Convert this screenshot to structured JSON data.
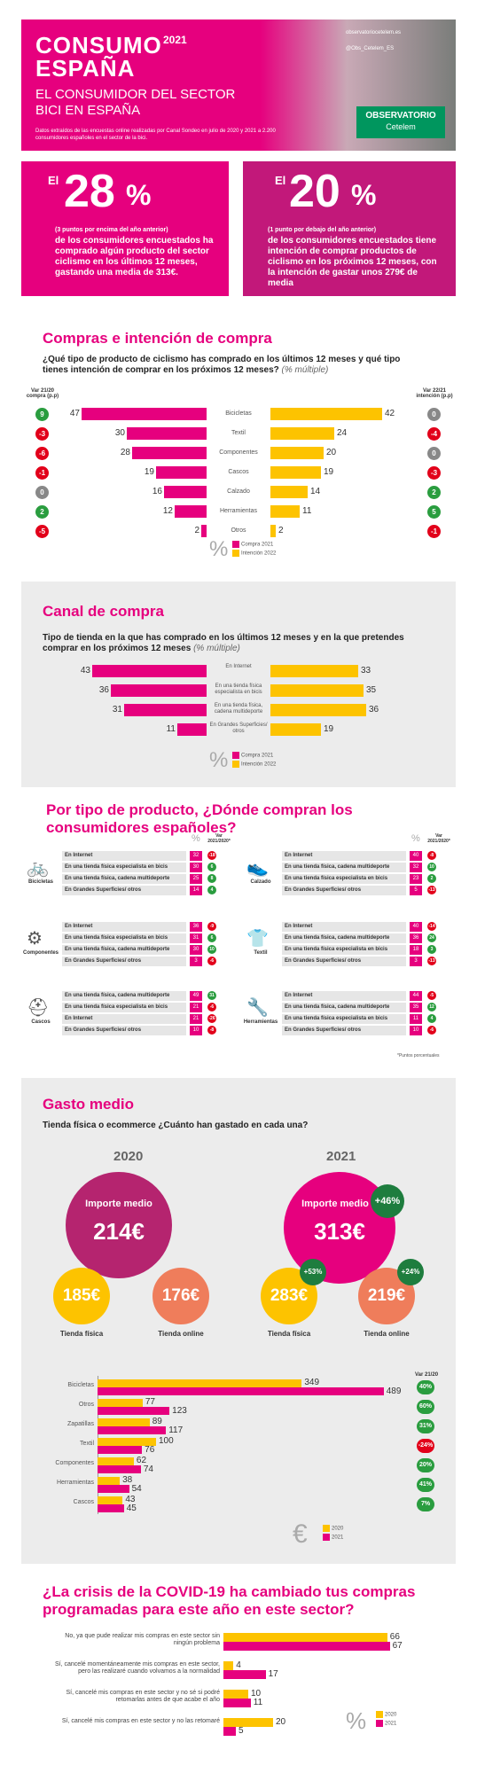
{
  "header": {
    "title1": "CONSUMO",
    "year": "2021",
    "title2": "ESPAÑA",
    "sub1": "EL CONSUMIDOR DEL SECTOR",
    "sub2": "BICI EN ESPAÑA",
    "note": "Datos extraídos de las encuestas online realizadas por Canal Sondeo en julio de 2020 y 2021 a 2.200 consumidores españoles en el sector de la bici.",
    "email": "observatoriocetelem.es",
    "twitter": "@Obs_Cetelem_ES",
    "logo1": "OBSERVATORIO",
    "logo2": "Cetelem",
    "colors": {
      "accent": "#e6007e",
      "yellow": "#fdc300"
    }
  },
  "kpi": [
    {
      "pre": "El",
      "value": "28",
      "unit": "%",
      "sub": "(3 puntos por encima del año anterior)",
      "text": "de los consumidores encuestados ha comprado algún producto del sector ciclismo en los últimos 12 meses,  gastando una media de 313€."
    },
    {
      "pre": "El",
      "value": "20",
      "unit": "%",
      "sub": "(1 punto por debajo del año anterior)",
      "text": "de los consumidores encuestados tiene intención de comprar productos de ciclismo en los próximos 12 meses, con la intención de gastar unos 279€ de media"
    }
  ],
  "compras": {
    "title": "Compras e intención de compra",
    "question": "¿Qué tipo de producto de ciclismo has comprado en los últimos 12 meses y qué tipo tienes intención de comprar en los próximos 12 meses?",
    "multi": "(% múltiple)",
    "var_left": "Var 21/20 compra (p.p)",
    "var_right": "Var 22/21 intención (p.p)",
    "pct": "%",
    "legend": [
      "Compra 2021",
      "Intención  2022"
    ],
    "rows": [
      {
        "label": "Bicicletas",
        "compra": 47,
        "intencion": 42,
        "varL": "9",
        "varR": "0",
        "cL": "g",
        "cR": "gr"
      },
      {
        "label": "Textil",
        "compra": 30,
        "intencion": 24,
        "varL": "-3",
        "varR": "-4",
        "cL": "r",
        "cR": "r"
      },
      {
        "label": "Componentes",
        "compra": 28,
        "intencion": 20,
        "varL": "-6",
        "varR": "0",
        "cL": "r",
        "cR": "gr"
      },
      {
        "label": "Cascos",
        "compra": 19,
        "intencion": 19,
        "varL": "-1",
        "varR": "-3",
        "cL": "r",
        "cR": "r"
      },
      {
        "label": "Calzado",
        "compra": 16,
        "intencion": 14,
        "varL": "0",
        "varR": "2",
        "cL": "gr",
        "cR": "g"
      },
      {
        "label": "Herramientas",
        "compra": 12,
        "intencion": 11,
        "varL": "2",
        "varR": "5",
        "cL": "g",
        "cR": "g"
      },
      {
        "label": "Otros",
        "compra": 2,
        "intencion": 2,
        "varL": "-5",
        "varR": "-1",
        "cL": "r",
        "cR": "r"
      }
    ]
  },
  "canal": {
    "title": "Canal de compra",
    "question": "Tipo de tienda en la que has comprado en los últimos 12 meses y en la que pretendes comprar en los próximos 12 meses",
    "multi": "(% múltiple)",
    "pct": "%",
    "legend": [
      "Compra 2021",
      "Intención  2022"
    ],
    "rows": [
      {
        "label": "En Internet",
        "compra": 43,
        "intencion": 33
      },
      {
        "label": "En una tienda física especialista en bicis",
        "compra": 36,
        "intencion": 35
      },
      {
        "label": "En una tienda física, cadena multideporte",
        "compra": 31,
        "intencion": 36
      },
      {
        "label": "En Grandes Superficies/ otros",
        "compra": 11,
        "intencion": 19
      }
    ]
  },
  "producto": {
    "title": "Por tipo de producto, ¿Dónde compran los consumidores españoles?",
    "pct": "%",
    "var": "Var 2021/2020*",
    "footnote": "*Puntos porcentuales",
    "blocks": [
      {
        "name": "Bicicletas",
        "icon": "bicycle-icon",
        "rows": [
          [
            "En Internet",
            "32",
            "-18",
            "r"
          ],
          [
            "En una tienda física especialista en bicis",
            "30",
            "6",
            "g"
          ],
          [
            "En una tienda física, cadena multideporte",
            "25",
            "8",
            "g"
          ],
          [
            "En Grandes Superficies/ otros",
            "14",
            "4",
            "g"
          ]
        ]
      },
      {
        "name": "Calzado",
        "icon": "shoe-icon",
        "rows": [
          [
            "En Internet",
            "40",
            "-8",
            "r"
          ],
          [
            "En una tienda física, cadena multideporte",
            "32",
            "10",
            "g"
          ],
          [
            "En una tienda física especialista en bicis",
            "23",
            "2",
            "g"
          ],
          [
            "En Grandes Superficies/ otros",
            "5",
            "-13",
            "r"
          ]
        ]
      },
      {
        "name": "Componentes",
        "icon": "gear-icon",
        "rows": [
          [
            "En Internet",
            "36",
            "-9",
            "r"
          ],
          [
            "En una tienda física especialista en bicis",
            "31",
            "6",
            "g"
          ],
          [
            "En una tienda física, cadena multideporte",
            "30",
            "10",
            "g"
          ],
          [
            "En Grandes Superficies/ otros",
            "3",
            "-6",
            "r"
          ]
        ]
      },
      {
        "name": "Textil",
        "icon": "shirt-icon",
        "rows": [
          [
            "En Internet",
            "40",
            "-14",
            "r"
          ],
          [
            "En una tienda física, cadena multideporte",
            "36",
            "24",
            "g"
          ],
          [
            "En una tienda física especialista en bicis",
            "18",
            "3",
            "g"
          ],
          [
            "En Grandes Superficies/ otros",
            "3",
            "-13",
            "r"
          ]
        ]
      },
      {
        "name": "Cascos",
        "icon": "helmet-icon",
        "rows": [
          [
            "En una tienda física, cadena multideporte",
            "49",
            "31",
            "g"
          ],
          [
            "En una tienda física especialista en bicis",
            "21",
            "-6",
            "r"
          ],
          [
            "En Internet",
            "21",
            "-26",
            "r"
          ],
          [
            "En Grandes Superficies/ otros",
            "10",
            "-8",
            "r"
          ]
        ]
      },
      {
        "name": "Herramientas",
        "icon": "wrench-icon",
        "rows": [
          [
            "En Internet",
            "44",
            "-5",
            "r"
          ],
          [
            "En una tienda física, cadena multideporte",
            "35",
            "12",
            "g"
          ],
          [
            "En una tienda física especialista en bicis",
            "11",
            "4",
            "g"
          ],
          [
            "En Grandes Superficies/ otros",
            "10",
            "-6",
            "r"
          ]
        ]
      }
    ]
  },
  "gasto": {
    "title": "Gasto medio",
    "question": "Tienda física o ecommerce ¿Cuánto han gastado en cada una?",
    "y2020": "2020",
    "y2021": "2021",
    "importe": "Importe medio",
    "i2020": "214€",
    "i2021": "313€",
    "inc": "+46%",
    "f2020": "185€",
    "o2020": "176€",
    "f2021": "283€",
    "o2021": "219€",
    "incF": "+53%",
    "incO": "+24%",
    "fisica": "Tienda física",
    "online": "Tienda online",
    "var": "Var 21/20",
    "euro": "€",
    "legend": [
      "2020",
      "2021"
    ],
    "rows": [
      {
        "label": "Bicicletas",
        "v2020": 349,
        "v2021": 489,
        "var": "40%",
        "c": "g"
      },
      {
        "label": "Otros",
        "v2020": 77,
        "v2021": 123,
        "var": "60%",
        "c": "g"
      },
      {
        "label": "Zapatillas",
        "v2020": 89,
        "v2021": 117,
        "var": "31%",
        "c": "g"
      },
      {
        "label": "Textil",
        "v2020": 100,
        "v2021": 76,
        "var": "-24%",
        "c": "r"
      },
      {
        "label": "Componentes",
        "v2020": 62,
        "v2021": 74,
        "var": "20%",
        "c": "g"
      },
      {
        "label": "Herramientas",
        "v2020": 38,
        "v2021": 54,
        "var": "41%",
        "c": "g"
      },
      {
        "label": "Cascos",
        "v2020": 43,
        "v2021": 45,
        "var": "7%",
        "c": "g"
      }
    ]
  },
  "covid": {
    "title": "¿La crisis de la COVID-19 ha cambiado tus compras programadas para este año en este sector?",
    "pct": "%",
    "legend": [
      "2020",
      "2021"
    ],
    "rows": [
      {
        "label": "No, ya que pude realizar mis compras en este sector sin ningún problema",
        "v2020": 66,
        "v2021": 67
      },
      {
        "label": "Sí, cancelé momentáneamente mis compras en este sector, pero las realizaré cuando volvamos a la normalidad",
        "v2020": 4,
        "v2021": 17
      },
      {
        "label": "Sí, cancelé mis compras en este sector y no sé si podré retomarlas antes de que acabe el año",
        "v2020": 10,
        "v2021": 11
      },
      {
        "label": "Sí, cancelé mis compras en este sector y no las retomaré",
        "v2020": 20,
        "v2021": 5
      }
    ]
  }
}
